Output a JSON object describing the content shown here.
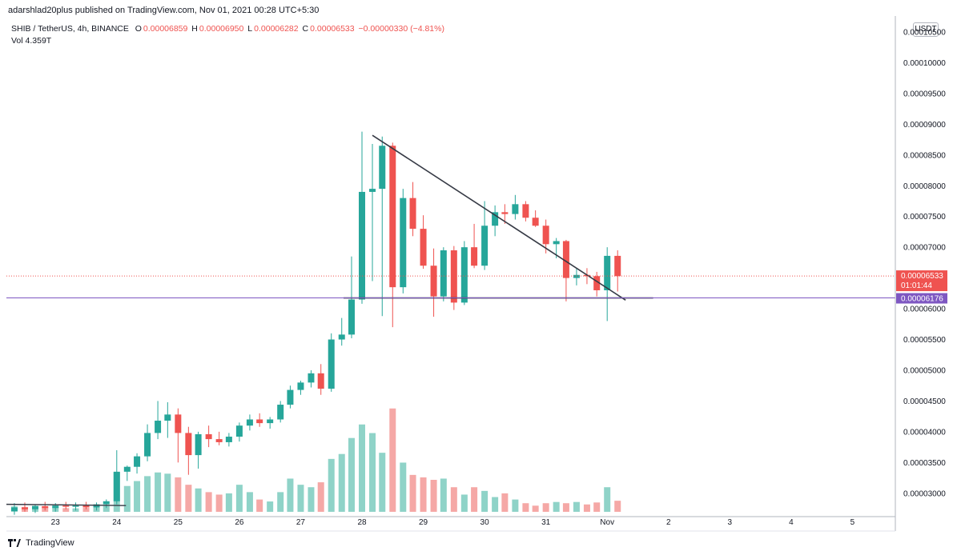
{
  "header": {
    "published_line": "adarshlad20plus published on TradingView.com, Nov 01, 2021 00:28 UTC+5:30"
  },
  "legend": {
    "symbol": "SHIB / TetherUS, 4h, BINANCE",
    "open_key": "O",
    "open": "0.00006859",
    "high_key": "H",
    "high": "0.00006950",
    "low_key": "L",
    "low": "0.00006282",
    "close_key": "C",
    "close": "0.00006533",
    "change": "−0.00000330 (−4.81%)",
    "vol_key": "Vol",
    "vol": "4.359T"
  },
  "currency_button": "USDT",
  "footer": {
    "brand": "TradingView"
  },
  "colors": {
    "up": "#26a69a",
    "down": "#ef5350",
    "vol_up": "#8fd3c8",
    "vol_down": "#f5a8a6",
    "trendline": "#363a45",
    "horizontal": "#7e57c2",
    "last_price": "#ef5350",
    "level_tag": "#7e57c2"
  },
  "chart_data": {
    "type": "candlestick",
    "y_axis_labels": [
      "0.00010500",
      "0.00010000",
      "0.00009500",
      "0.00009000",
      "0.00008500",
      "0.00008000",
      "0.00007500",
      "0.00007000",
      "0.00006500",
      "0.00006000",
      "0.00005500",
      "0.00005000",
      "0.00004500",
      "0.00004000",
      "0.00003500",
      "0.00003000"
    ],
    "y_tick_values": [
      0.000105,
      0.0001,
      9.5e-05,
      9e-05,
      8.5e-05,
      8e-05,
      7.5e-05,
      7e-05,
      6.5e-05,
      6e-05,
      5.5e-05,
      5e-05,
      4.5e-05,
      4e-05,
      3.5e-05,
      3e-05
    ],
    "ylim": [
      2.62e-05,
      0.0001076
    ],
    "x_axis_labels": [
      "23",
      "24",
      "25",
      "26",
      "27",
      "28",
      "29",
      "30",
      "31",
      "Nov",
      "2",
      "3",
      "4",
      "5"
    ],
    "x_tick_days": [
      23,
      24,
      25,
      26,
      27,
      28,
      29,
      30,
      31,
      32,
      33,
      34,
      35,
      36
    ],
    "xlim": [
      22.2,
      36.7
    ],
    "last_price": {
      "value": 6.533e-05,
      "label": "0.00006533",
      "countdown": "01:01:44"
    },
    "horizontal_level": {
      "value": 6.176e-05,
      "label": "0.00006176",
      "x_range": [
        27.7,
        32.75
      ]
    },
    "trendline": {
      "from": [
        28.17,
        8.82e-05
      ],
      "to": [
        32.3,
        6.14e-05
      ]
    },
    "volume_trendline": {
      "from": [
        22.2,
        2.82e-05
      ],
      "to": [
        24.15,
        2.8e-05
      ]
    },
    "volume_ylim": [
      0,
      520
    ],
    "candles": [
      {
        "t": 22.33,
        "o": 2.71e-05,
        "h": 2.84e-05,
        "l": 2.65e-05,
        "c": 2.77e-05,
        "v": 22
      },
      {
        "t": 22.5,
        "o": 2.77e-05,
        "h": 2.85e-05,
        "l": 2.7e-05,
        "c": 2.74e-05,
        "v": 20
      },
      {
        "t": 22.67,
        "o": 2.74e-05,
        "h": 2.82e-05,
        "l": 2.68e-05,
        "c": 2.79e-05,
        "v": 25
      },
      {
        "t": 22.83,
        "o": 2.79e-05,
        "h": 2.86e-05,
        "l": 2.72e-05,
        "c": 2.76e-05,
        "v": 18
      },
      {
        "t": 23.0,
        "o": 2.76e-05,
        "h": 2.84e-05,
        "l": 2.7e-05,
        "c": 2.8e-05,
        "v": 20
      },
      {
        "t": 23.17,
        "o": 2.8e-05,
        "h": 2.86e-05,
        "l": 2.74e-05,
        "c": 2.78e-05,
        "v": 15
      },
      {
        "t": 23.33,
        "o": 2.78e-05,
        "h": 2.85e-05,
        "l": 2.72e-05,
        "c": 2.8e-05,
        "v": 14
      },
      {
        "t": 23.5,
        "o": 2.8e-05,
        "h": 2.86e-05,
        "l": 2.74e-05,
        "c": 2.77e-05,
        "v": 16
      },
      {
        "t": 23.67,
        "o": 2.77e-05,
        "h": 2.85e-05,
        "l": 2.72e-05,
        "c": 2.82e-05,
        "v": 18
      },
      {
        "t": 23.83,
        "o": 2.82e-05,
        "h": 2.9e-05,
        "l": 2.76e-05,
        "c": 2.87e-05,
        "v": 28
      },
      {
        "t": 24.0,
        "o": 2.87e-05,
        "h": 3.7e-05,
        "l": 2.82e-05,
        "c": 3.35e-05,
        "v": 160
      },
      {
        "t": 24.17,
        "o": 3.35e-05,
        "h": 3.45e-05,
        "l": 3.2e-05,
        "c": 3.43e-05,
        "v": 105
      },
      {
        "t": 24.33,
        "o": 3.43e-05,
        "h": 3.65e-05,
        "l": 3.32e-05,
        "c": 3.6e-05,
        "v": 125
      },
      {
        "t": 24.5,
        "o": 3.6e-05,
        "h": 4.12e-05,
        "l": 3.52e-05,
        "c": 3.98e-05,
        "v": 145
      },
      {
        "t": 24.67,
        "o": 3.98e-05,
        "h": 4.5e-05,
        "l": 3.88e-05,
        "c": 4.18e-05,
        "v": 160
      },
      {
        "t": 24.83,
        "o": 4.18e-05,
        "h": 4.48e-05,
        "l": 3.9e-05,
        "c": 4.28e-05,
        "v": 155
      },
      {
        "t": 25.0,
        "o": 4.28e-05,
        "h": 4.38e-05,
        "l": 3.5e-05,
        "c": 3.98e-05,
        "v": 140
      },
      {
        "t": 25.17,
        "o": 3.98e-05,
        "h": 4.08e-05,
        "l": 3.3e-05,
        "c": 3.62e-05,
        "v": 110
      },
      {
        "t": 25.33,
        "o": 3.62e-05,
        "h": 4e-05,
        "l": 3.4e-05,
        "c": 3.96e-05,
        "v": 95
      },
      {
        "t": 25.5,
        "o": 3.96e-05,
        "h": 4.1e-05,
        "l": 3.75e-05,
        "c": 3.88e-05,
        "v": 80
      },
      {
        "t": 25.67,
        "o": 3.88e-05,
        "h": 4e-05,
        "l": 3.78e-05,
        "c": 3.83e-05,
        "v": 70
      },
      {
        "t": 25.83,
        "o": 3.83e-05,
        "h": 3.98e-05,
        "l": 3.76e-05,
        "c": 3.92e-05,
        "v": 75
      },
      {
        "t": 26.0,
        "o": 3.92e-05,
        "h": 4.15e-05,
        "l": 3.84e-05,
        "c": 4.1e-05,
        "v": 110
      },
      {
        "t": 26.17,
        "o": 4.1e-05,
        "h": 4.28e-05,
        "l": 4.02e-05,
        "c": 4.2e-05,
        "v": 80
      },
      {
        "t": 26.33,
        "o": 4.2e-05,
        "h": 4.3e-05,
        "l": 4.08e-05,
        "c": 4.14e-05,
        "v": 50
      },
      {
        "t": 26.5,
        "o": 4.14e-05,
        "h": 4.24e-05,
        "l": 4.05e-05,
        "c": 4.2e-05,
        "v": 42
      },
      {
        "t": 26.67,
        "o": 4.2e-05,
        "h": 4.5e-05,
        "l": 4.15e-05,
        "c": 4.44e-05,
        "v": 80
      },
      {
        "t": 26.83,
        "o": 4.44e-05,
        "h": 4.75e-05,
        "l": 4.38e-05,
        "c": 4.68e-05,
        "v": 135
      },
      {
        "t": 27.0,
        "o": 4.68e-05,
        "h": 4.83e-05,
        "l": 4.6e-05,
        "c": 4.8e-05,
        "v": 110
      },
      {
        "t": 27.17,
        "o": 4.8e-05,
        "h": 5e-05,
        "l": 4.72e-05,
        "c": 4.95e-05,
        "v": 100
      },
      {
        "t": 27.33,
        "o": 4.95e-05,
        "h": 5.1e-05,
        "l": 4.6e-05,
        "c": 4.7e-05,
        "v": 120
      },
      {
        "t": 27.5,
        "o": 4.7e-05,
        "h": 5.6e-05,
        "l": 4.65e-05,
        "c": 5.5e-05,
        "v": 215
      },
      {
        "t": 27.67,
        "o": 5.5e-05,
        "h": 5.85e-05,
        "l": 5.4e-05,
        "c": 5.58e-05,
        "v": 235
      },
      {
        "t": 27.83,
        "o": 5.58e-05,
        "h": 6.85e-05,
        "l": 5.52e-05,
        "c": 6.15e-05,
        "v": 300
      },
      {
        "t": 28.0,
        "o": 6.15e-05,
        "h": 8.88e-05,
        "l": 6.08e-05,
        "c": 7.9e-05,
        "v": 355
      },
      {
        "t": 28.17,
        "o": 7.9e-05,
        "h": 8.68e-05,
        "l": 6.45e-05,
        "c": 7.95e-05,
        "v": 320
      },
      {
        "t": 28.33,
        "o": 7.95e-05,
        "h": 8.8e-05,
        "l": 5.88e-05,
        "c": 8.65e-05,
        "v": 240
      },
      {
        "t": 28.5,
        "o": 8.65e-05,
        "h": 8.7e-05,
        "l": 5.7e-05,
        "c": 6.35e-05,
        "v": 420
      },
      {
        "t": 28.67,
        "o": 6.35e-05,
        "h": 7.95e-05,
        "l": 6.25e-05,
        "c": 7.8e-05,
        "v": 200
      },
      {
        "t": 28.83,
        "o": 7.8e-05,
        "h": 8.06e-05,
        "l": 7.18e-05,
        "c": 7.3e-05,
        "v": 150
      },
      {
        "t": 29.0,
        "o": 7.3e-05,
        "h": 7.52e-05,
        "l": 6.65e-05,
        "c": 6.7e-05,
        "v": 140
      },
      {
        "t": 29.17,
        "o": 6.7e-05,
        "h": 6.98e-05,
        "l": 5.87e-05,
        "c": 6.2e-05,
        "v": 130
      },
      {
        "t": 29.33,
        "o": 6.2e-05,
        "h": 7e-05,
        "l": 6.12e-05,
        "c": 6.95e-05,
        "v": 135
      },
      {
        "t": 29.5,
        "o": 6.95e-05,
        "h": 7.02e-05,
        "l": 5.98e-05,
        "c": 6.1e-05,
        "v": 100
      },
      {
        "t": 29.67,
        "o": 6.1e-05,
        "h": 7.1e-05,
        "l": 6.06e-05,
        "c": 7e-05,
        "v": 70
      },
      {
        "t": 29.83,
        "o": 7e-05,
        "h": 7.38e-05,
        "l": 6.66e-05,
        "c": 6.7e-05,
        "v": 100
      },
      {
        "t": 30.0,
        "o": 6.7e-05,
        "h": 7.75e-05,
        "l": 6.63e-05,
        "c": 7.35e-05,
        "v": 85
      },
      {
        "t": 30.17,
        "o": 7.35e-05,
        "h": 7.68e-05,
        "l": 7.18e-05,
        "c": 7.57e-05,
        "v": 60
      },
      {
        "t": 30.33,
        "o": 7.57e-05,
        "h": 7.7e-05,
        "l": 7.38e-05,
        "c": 7.54e-05,
        "v": 75
      },
      {
        "t": 30.5,
        "o": 7.54e-05,
        "h": 7.85e-05,
        "l": 7.45e-05,
        "c": 7.7e-05,
        "v": 50
      },
      {
        "t": 30.67,
        "o": 7.7e-05,
        "h": 7.75e-05,
        "l": 7.42e-05,
        "c": 7.48e-05,
        "v": 35
      },
      {
        "t": 30.83,
        "o": 7.48e-05,
        "h": 7.6e-05,
        "l": 7.33e-05,
        "c": 7.35e-05,
        "v": 25
      },
      {
        "t": 31.0,
        "o": 7.35e-05,
        "h": 7.45e-05,
        "l": 6.9e-05,
        "c": 7.05e-05,
        "v": 35
      },
      {
        "t": 31.17,
        "o": 7.05e-05,
        "h": 7.15e-05,
        "l": 6.82e-05,
        "c": 7.1e-05,
        "v": 40
      },
      {
        "t": 31.33,
        "o": 7.1e-05,
        "h": 7.12e-05,
        "l": 6.12e-05,
        "c": 6.5e-05,
        "v": 35
      },
      {
        "t": 31.5,
        "o": 6.5e-05,
        "h": 6.65e-05,
        "l": 6.38e-05,
        "c": 6.55e-05,
        "v": 40
      },
      {
        "t": 31.67,
        "o": 6.55e-05,
        "h": 6.66e-05,
        "l": 6.4e-05,
        "c": 6.53e-05,
        "v": 30
      },
      {
        "t": 31.83,
        "o": 6.53e-05,
        "h": 6.6e-05,
        "l": 6.2e-05,
        "c": 6.3e-05,
        "v": 38
      },
      {
        "t": 32.0,
        "o": 6.3e-05,
        "h": 7e-05,
        "l": 5.8e-05,
        "c": 6.86e-05,
        "v": 100
      },
      {
        "t": 32.17,
        "o": 6.86e-05,
        "h": 6.95e-05,
        "l": 6.28e-05,
        "c": 6.53e-05,
        "v": 45
      }
    ]
  }
}
